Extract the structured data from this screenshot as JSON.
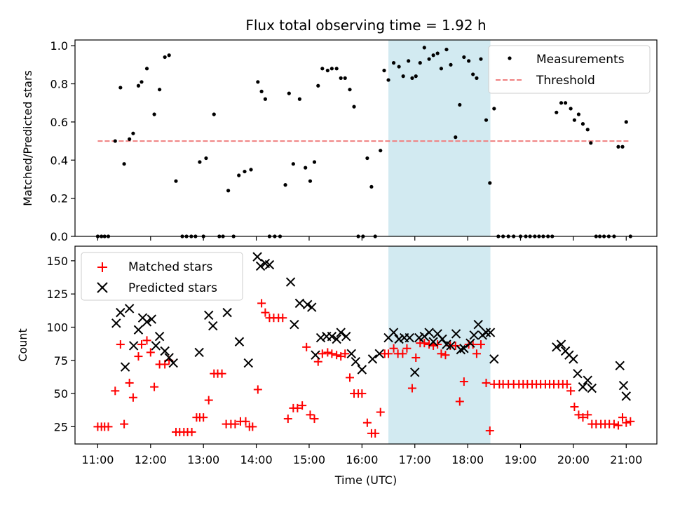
{
  "chart_data": [
    {
      "type": "scatter",
      "title": "Flux total observing time = 1.92 h",
      "ylabel": "Matched/Predicted stars",
      "xlabel": "",
      "ylim": [
        0.0,
        1.03
      ],
      "yticks": [
        0.0,
        0.2,
        0.4,
        0.6,
        0.8,
        1.0
      ],
      "ytick_labels": [
        "0.0",
        "0.2",
        "0.4",
        "0.6",
        "0.8",
        "1.0"
      ],
      "shaded_span": {
        "x": [
          16.5,
          18.43
        ],
        "color": "#add8e6"
      },
      "legend": {
        "placement": "upper right",
        "entries": [
          "Measurements",
          "Threshold"
        ]
      },
      "series": [
        {
          "name": "Measurements",
          "color": "#000000",
          "marker": "dot",
          "x": [
            11.0,
            11.07,
            11.13,
            11.2,
            11.33,
            11.43,
            11.5,
            11.6,
            11.67,
            11.77,
            11.83,
            11.93,
            12.07,
            12.17,
            12.27,
            12.35,
            12.48,
            12.6,
            12.68,
            12.77,
            12.85,
            12.93,
            13.0,
            13.05,
            13.2,
            13.3,
            13.37,
            13.47,
            13.57,
            13.67,
            13.78,
            13.9,
            14.03,
            14.1,
            14.17,
            14.25,
            14.35,
            14.45,
            14.55,
            14.62,
            14.7,
            14.82,
            14.93,
            15.02,
            15.1,
            15.17,
            15.25,
            15.35,
            15.43,
            15.52,
            15.6,
            15.68,
            15.77,
            15.85,
            15.93,
            16.02,
            16.1,
            16.18,
            16.25,
            16.35,
            16.42,
            16.5,
            16.6,
            16.7,
            16.78,
            16.88,
            16.95,
            17.02,
            17.1,
            17.18,
            17.27,
            17.35,
            17.43,
            17.5,
            17.6,
            17.68,
            17.77,
            17.85,
            17.93,
            18.02,
            18.1,
            18.17,
            18.25,
            18.35,
            18.42,
            18.5,
            18.58,
            18.67,
            18.77,
            18.87,
            19.0,
            19.1,
            19.18,
            19.27,
            19.35,
            19.43,
            19.52,
            19.6,
            19.68,
            19.77,
            19.85,
            19.95,
            20.02,
            20.1,
            20.18,
            20.27,
            20.33,
            20.43,
            20.5,
            20.58,
            20.67,
            20.77,
            20.85,
            20.93,
            21.0,
            21.08
          ],
          "y": [
            0.0,
            0.0,
            0.0,
            0.0,
            0.5,
            0.78,
            0.38,
            0.51,
            0.54,
            0.79,
            0.81,
            0.88,
            0.64,
            0.77,
            0.94,
            0.95,
            0.29,
            0.0,
            0.0,
            0.0,
            0.0,
            0.39,
            0.0,
            0.41,
            0.64,
            0.0,
            0.0,
            0.24,
            0.0,
            0.32,
            0.34,
            0.35,
            0.81,
            0.76,
            0.72,
            0.0,
            0.0,
            0.0,
            0.27,
            0.75,
            0.38,
            0.72,
            0.36,
            0.29,
            0.39,
            0.79,
            0.88,
            0.87,
            0.88,
            0.88,
            0.83,
            0.83,
            0.77,
            0.68,
            0.0,
            0.0,
            0.41,
            0.26,
            0.0,
            0.45,
            0.87,
            0.82,
            0.91,
            0.89,
            0.84,
            0.92,
            0.83,
            0.84,
            0.91,
            0.99,
            0.93,
            0.95,
            0.96,
            0.88,
            0.98,
            0.9,
            0.52,
            0.69,
            0.94,
            0.92,
            0.85,
            0.83,
            0.93,
            0.61,
            0.28,
            0.67,
            0.0,
            0.0,
            0.0,
            0.0,
            0.0,
            0.0,
            0.0,
            0.0,
            0.0,
            0.0,
            0.0,
            0.0,
            0.65,
            0.7,
            0.7,
            0.67,
            0.61,
            0.64,
            0.59,
            0.56,
            0.49,
            0.0,
            0.0,
            0.0,
            0.0,
            0.0,
            0.47,
            0.47,
            0.6,
            0.0
          ]
        },
        {
          "name": "Threshold",
          "color": "#f08080",
          "style": "dashed",
          "x": [
            11.0,
            21.08
          ],
          "y": [
            0.5,
            0.5
          ]
        }
      ]
    },
    {
      "type": "scatter",
      "title": "",
      "ylabel": "Count",
      "xlabel": "Time (UTC)",
      "ylim": [
        12,
        161
      ],
      "yticks": [
        25,
        50,
        75,
        100,
        125,
        150
      ],
      "ytick_labels": [
        "25",
        "50",
        "75",
        "100",
        "125",
        "150"
      ],
      "xlim": [
        10.57,
        21.58
      ],
      "xticks": [
        11,
        12,
        13,
        14,
        15,
        16,
        17,
        18,
        19,
        20,
        21
      ],
      "xtick_labels": [
        "11:00",
        "12:00",
        "13:00",
        "14:00",
        "15:00",
        "16:00",
        "17:00",
        "18:00",
        "19:00",
        "20:00",
        "21:00"
      ],
      "shaded_span": {
        "x": [
          16.5,
          18.43
        ],
        "color": "#add8e6"
      },
      "legend": {
        "placement": "upper left",
        "entries": [
          "Matched stars",
          "Predicted stars"
        ]
      },
      "series": [
        {
          "name": "Matched stars",
          "color": "#ff0000",
          "marker": "plus",
          "x": [
            11.0,
            11.07,
            11.13,
            11.2,
            11.33,
            11.43,
            11.5,
            11.6,
            11.67,
            11.77,
            11.83,
            11.93,
            12.0,
            12.07,
            12.17,
            12.27,
            12.35,
            12.48,
            12.55,
            12.63,
            12.7,
            12.78,
            12.87,
            12.93,
            13.0,
            13.1,
            13.2,
            13.27,
            13.35,
            13.43,
            13.52,
            13.6,
            13.7,
            13.8,
            13.87,
            13.93,
            14.03,
            14.1,
            14.17,
            14.25,
            14.33,
            14.42,
            14.5,
            14.6,
            14.7,
            14.78,
            14.87,
            14.95,
            15.02,
            15.1,
            15.17,
            15.25,
            15.35,
            15.43,
            15.52,
            15.6,
            15.68,
            15.77,
            15.85,
            15.93,
            16.0,
            16.1,
            16.18,
            16.25,
            16.35,
            16.43,
            16.5,
            16.6,
            16.68,
            16.77,
            16.85,
            16.95,
            17.02,
            17.1,
            17.18,
            17.27,
            17.35,
            17.43,
            17.5,
            17.58,
            17.67,
            17.77,
            17.85,
            17.93,
            18.02,
            18.1,
            18.17,
            18.25,
            18.35,
            18.42,
            18.5,
            18.6,
            18.67,
            18.77,
            18.87,
            18.97,
            19.05,
            19.13,
            19.22,
            19.3,
            19.38,
            19.47,
            19.55,
            19.63,
            19.72,
            19.8,
            19.88,
            19.95,
            20.02,
            20.1,
            20.18,
            20.27,
            20.35,
            20.43,
            20.52,
            20.6,
            20.68,
            20.77,
            20.85,
            20.93,
            21.0,
            21.08
          ],
          "y": [
            25,
            25,
            25,
            25,
            52,
            87,
            27,
            58,
            47,
            78,
            87,
            90,
            81,
            55,
            72,
            72,
            75,
            21,
            21,
            21,
            21,
            21,
            32,
            32,
            32,
            45,
            65,
            65,
            65,
            27,
            27,
            27,
            29,
            29,
            25,
            25,
            53,
            118,
            111,
            107,
            107,
            107,
            107,
            31,
            39,
            39,
            41,
            85,
            34,
            31,
            74,
            80,
            81,
            80,
            79,
            78,
            80,
            62,
            50,
            50,
            50,
            28,
            20,
            20,
            36,
            80,
            80,
            84,
            80,
            80,
            84,
            54,
            77,
            88,
            88,
            87,
            86,
            87,
            80,
            79,
            86,
            86,
            44,
            59,
            87,
            87,
            80,
            87,
            58,
            22,
            57,
            57,
            57,
            57,
            57,
            57,
            57,
            57,
            57,
            57,
            57,
            57,
            57,
            57,
            57,
            57,
            57,
            52,
            40,
            34,
            32,
            34,
            27,
            27,
            27,
            27,
            27,
            27,
            26,
            32,
            28,
            29
          ]
        },
        {
          "name": "Predicted stars",
          "color": "#000000",
          "marker": "x",
          "x": [
            11.35,
            11.43,
            11.52,
            11.6,
            11.68,
            11.77,
            11.85,
            11.93,
            12.02,
            12.1,
            12.17,
            12.27,
            12.35,
            12.43,
            12.92,
            13.1,
            13.18,
            13.45,
            13.68,
            13.85,
            14.02,
            14.08,
            14.17,
            14.25,
            14.65,
            14.72,
            14.82,
            14.97,
            15.05,
            15.12,
            15.22,
            15.33,
            15.43,
            15.52,
            15.6,
            15.7,
            15.8,
            15.88,
            16.0,
            16.2,
            16.33,
            16.5,
            16.6,
            16.7,
            16.8,
            16.9,
            17.0,
            17.08,
            17.18,
            17.27,
            17.35,
            17.43,
            17.52,
            17.6,
            17.68,
            17.78,
            17.87,
            17.93,
            18.05,
            18.12,
            18.2,
            18.28,
            18.35,
            18.43,
            18.5,
            19.68,
            19.77,
            19.85,
            19.92,
            20.0,
            20.08,
            20.18,
            20.27,
            20.35,
            20.88,
            20.95,
            21.0
          ],
          "y": [
            103,
            111,
            70,
            114,
            86,
            98,
            107,
            104,
            106,
            86,
            93,
            82,
            77,
            73,
            81,
            109,
            101,
            111,
            89,
            73,
            153,
            146,
            148,
            147,
            134,
            102,
            118,
            117,
            115,
            79,
            92,
            93,
            93,
            91,
            96,
            93,
            80,
            74,
            68,
            76,
            80,
            92,
            96,
            91,
            92,
            92,
            66,
            92,
            93,
            96,
            89,
            95,
            91,
            87,
            86,
            95,
            83,
            84,
            88,
            94,
            102,
            94,
            96,
            96,
            76,
            85,
            87,
            82,
            79,
            76,
            65,
            55,
            60,
            54,
            71,
            56,
            48
          ]
        }
      ]
    }
  ]
}
